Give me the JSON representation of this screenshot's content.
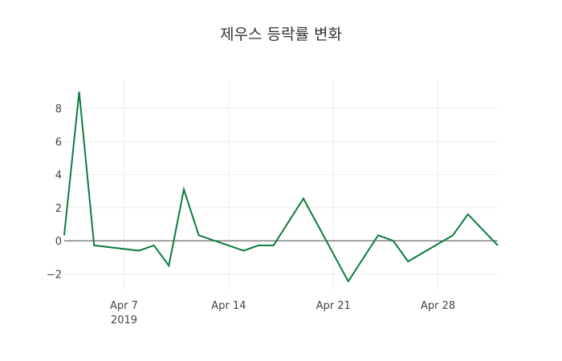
{
  "chart_data": {
    "type": "line",
    "title": "제우스 등락률 변화",
    "xlabel": "",
    "ylabel": "",
    "x": [
      "2019-04-03",
      "2019-04-04",
      "2019-04-05",
      "2019-04-08",
      "2019-04-09",
      "2019-04-10",
      "2019-04-11",
      "2019-04-12",
      "2019-04-15",
      "2019-04-16",
      "2019-04-17",
      "2019-04-19",
      "2019-04-22",
      "2019-04-24",
      "2019-04-25",
      "2019-04-26",
      "2019-04-29",
      "2019-04-30",
      "2019-05-02"
    ],
    "series": [
      {
        "name": "등락률",
        "color": "#0a7d3e",
        "values": [
          0.33,
          9.0,
          -0.28,
          -0.6,
          -0.28,
          -1.5,
          3.1,
          0.33,
          -0.6,
          -0.28,
          -0.28,
          2.55,
          -2.45,
          0.33,
          0.0,
          -1.25,
          0.33,
          1.6,
          -0.28
        ]
      }
    ],
    "x_ticks": [
      {
        "date": "2019-04-07",
        "label": "Apr 7",
        "sublabel": "2019"
      },
      {
        "date": "2019-04-14",
        "label": "Apr 14"
      },
      {
        "date": "2019-04-21",
        "label": "Apr 21"
      },
      {
        "date": "2019-04-28",
        "label": "Apr 28"
      }
    ],
    "y_ticks": [
      -2,
      0,
      2,
      4,
      6,
      8
    ],
    "y_tick_labels": [
      "−2",
      "0",
      "2",
      "4",
      "6",
      "8"
    ],
    "xlim": [
      "2019-04-03",
      "2019-05-02"
    ],
    "ylim": [
      -3.0,
      9.7
    ],
    "grid": true,
    "legend": "none"
  }
}
